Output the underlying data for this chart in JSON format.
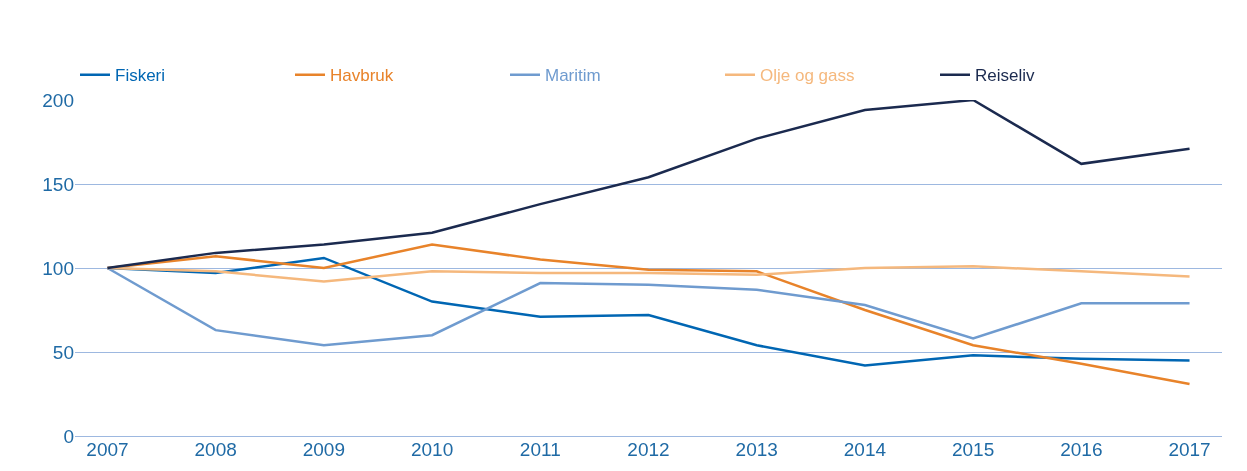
{
  "chart_data": {
    "type": "line",
    "categories": [
      "2007",
      "2008",
      "2009",
      "2010",
      "2011",
      "2012",
      "2013",
      "2014",
      "2015",
      "2016",
      "2017"
    ],
    "series": [
      {
        "name": "Fiskeri",
        "color": "#0066b3",
        "values": [
          100,
          97,
          106,
          80,
          71,
          72,
          54,
          42,
          48,
          46,
          45
        ]
      },
      {
        "name": "Havbruk",
        "color": "#e8832a",
        "values": [
          100,
          107,
          100,
          114,
          105,
          99,
          98,
          75,
          54,
          43,
          31
        ]
      },
      {
        "name": "Maritim",
        "color": "#6f9bcf",
        "values": [
          100,
          63,
          54,
          60,
          91,
          90,
          87,
          78,
          58,
          79,
          79
        ]
      },
      {
        "name": "Olje og gass",
        "color": "#f5b87d",
        "values": [
          100,
          98,
          92,
          98,
          97,
          97,
          96,
          100,
          101,
          98,
          95
        ]
      },
      {
        "name": "Reiseliv",
        "color": "#1b2a4f",
        "values": [
          100,
          109,
          114,
          121,
          138,
          154,
          177,
          194,
          200,
          162,
          171
        ]
      }
    ],
    "ylim": [
      0,
      200
    ],
    "yticks": [
      0,
      50,
      100,
      150,
      200
    ],
    "grid": "y",
    "legend": "top left",
    "marker": "none",
    "line_style": "solid"
  }
}
